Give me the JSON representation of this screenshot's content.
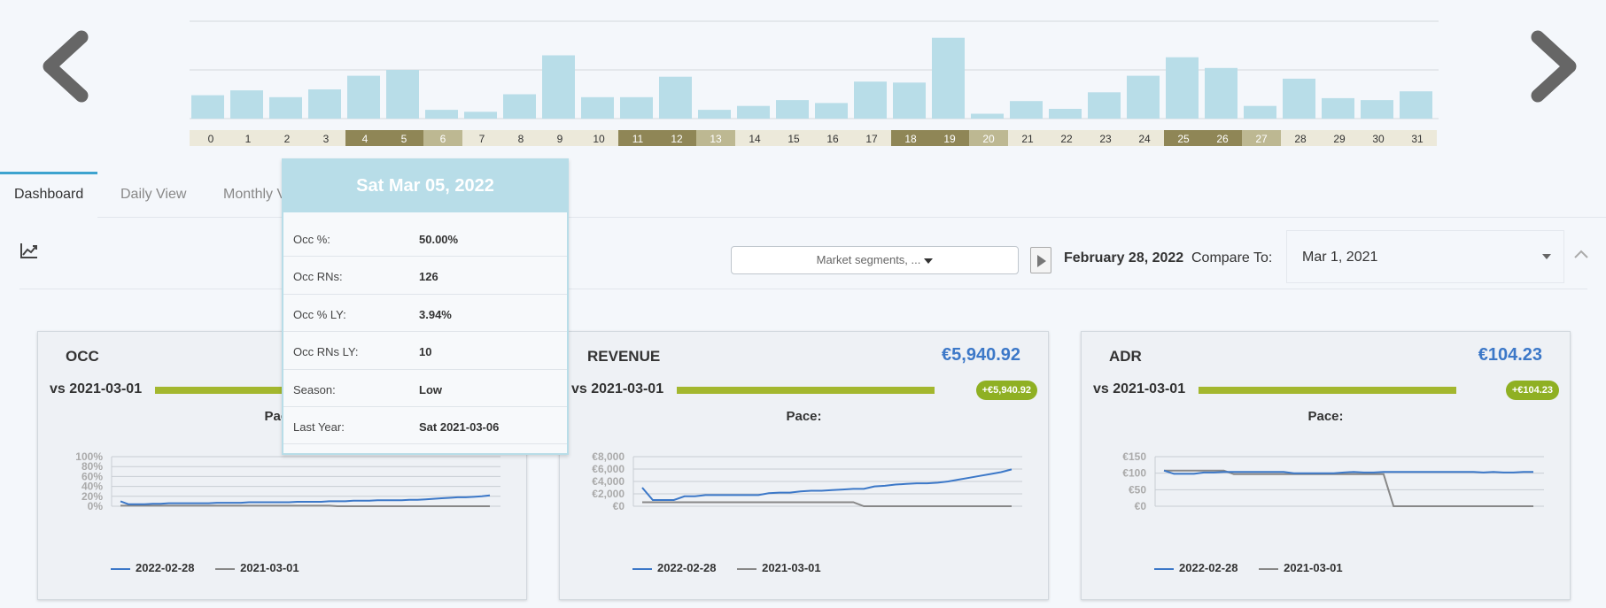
{
  "tabs": [
    {
      "label": "Dashboard"
    },
    {
      "label": "Daily View"
    },
    {
      "label": "Monthly V"
    }
  ],
  "filters": {
    "segment_label": "Market segments, ...",
    "current_date": "February 28, 2022",
    "compare_label": "Compare To:",
    "compare_value": "Mar 1, 2021"
  },
  "top_chart": {
    "type": "bar",
    "days": [
      "0",
      "1",
      "2",
      "3",
      "4",
      "5",
      "6",
      "7",
      "8",
      "9",
      "10",
      "11",
      "12",
      "13",
      "14",
      "15",
      "16",
      "17",
      "18",
      "19",
      "20",
      "21",
      "22",
      "23",
      "24",
      "25",
      "26",
      "27",
      "28",
      "29",
      "30",
      "31"
    ],
    "values": [
      24,
      29,
      22,
      30,
      44,
      50,
      9,
      7,
      25,
      65,
      22,
      22,
      43,
      9,
      13,
      19,
      16,
      38,
      37,
      83,
      5,
      18,
      10,
      27,
      44,
      63,
      52,
      13,
      41,
      21,
      19,
      28
    ],
    "day_styles": [
      "light",
      "light",
      "light",
      "light",
      "dark",
      "dark",
      "mid",
      "light",
      "light",
      "light",
      "light",
      "dark",
      "dark",
      "mid",
      "light",
      "light",
      "light",
      "light",
      "dark",
      "dark",
      "mid",
      "light",
      "light",
      "light",
      "light",
      "dark",
      "dark",
      "mid",
      "light",
      "light",
      "light",
      "light"
    ],
    "ylim": [
      0,
      100
    ],
    "colors": {
      "bar": "#b8dde8",
      "light": "#ece9da",
      "dark": "#8f8656",
      "mid": "#bdb892"
    }
  },
  "tooltip": {
    "title": "Sat Mar 05, 2022",
    "rows": [
      {
        "label": "Occ %:",
        "value": "50.00%"
      },
      {
        "label": "Occ RNs:",
        "value": "126"
      },
      {
        "label": "Occ % LY:",
        "value": "3.94%"
      },
      {
        "label": "Occ RNs LY:",
        "value": "10"
      },
      {
        "label": "Season:",
        "value": "Low"
      },
      {
        "label": "Last Year:",
        "value": "Sat 2021-03-06"
      }
    ]
  },
  "cards": [
    {
      "id": "occ",
      "title": "OCC",
      "value": "",
      "vs": "vs 2021-03-01",
      "badge": "",
      "pace": "Pace:",
      "legend": [
        "2022-02-28",
        "2021-03-01"
      ],
      "chart_data": {
        "type": "line",
        "ylim": [
          0,
          100
        ],
        "yticks": [
          0,
          20,
          40,
          60,
          80,
          100
        ],
        "ytick_labels": [
          "0%",
          "20%",
          "40%",
          "60%",
          "80%",
          "100%"
        ],
        "series": [
          {
            "name": "2022-02-28",
            "values": [
              10,
              4,
              4,
              4,
              5,
              5,
              6,
              6,
              6,
              6,
              6,
              6,
              7,
              7,
              7,
              7,
              8,
              8,
              8,
              8,
              8,
              8,
              9,
              9,
              9,
              9,
              10,
              10,
              10,
              11,
              11,
              11,
              12,
              12,
              12,
              12,
              13,
              13,
              14,
              15,
              16,
              17,
              18,
              18,
              19,
              20,
              22
            ]
          },
          {
            "name": "2021-03-01",
            "values": [
              1,
              1,
              1,
              1,
              1,
              1,
              1,
              1,
              1,
              1,
              1,
              1,
              1,
              1,
              1,
              1,
              1,
              1,
              1,
              1,
              1,
              1,
              1,
              1,
              1,
              1,
              1,
              0,
              0,
              0,
              0,
              0,
              0,
              0,
              0,
              0,
              0,
              0,
              0,
              0,
              0,
              0,
              0,
              0,
              0,
              0,
              0
            ]
          }
        ]
      }
    },
    {
      "id": "revenue",
      "title": "REVENUE",
      "value": "€5,940.92",
      "vs": "vs 2021-03-01",
      "badge": "+€5,940.92",
      "pace": "Pace:",
      "legend": [
        "2022-02-28",
        "2021-03-01"
      ],
      "chart_data": {
        "type": "line",
        "ylim": [
          0,
          8000
        ],
        "yticks": [
          0,
          2000,
          4000,
          6000,
          8000
        ],
        "ytick_labels": [
          "€0",
          "€2,000",
          "€4,000",
          "€6,000",
          "€8,000"
        ],
        "series": [
          {
            "name": "2022-02-28",
            "values": [
              3000,
              1000,
              1000,
              1000,
              1600,
              1600,
              1800,
              1800,
              1800,
              1800,
              1800,
              1800,
              2100,
              2200,
              2200,
              2400,
              2500,
              2500,
              2600,
              2700,
              2800,
              2800,
              3200,
              3300,
              3500,
              3600,
              3700,
              3700,
              3800,
              4000,
              4300,
              4600,
              4900,
              5200,
              5500,
              5940
            ]
          },
          {
            "name": "2021-03-01",
            "values": [
              650,
              650,
              650,
              650,
              650,
              650,
              650,
              650,
              650,
              650,
              650,
              650,
              650,
              650,
              650,
              650,
              650,
              650,
              650,
              650,
              650,
              0,
              0,
              0,
              0,
              0,
              0,
              0,
              0,
              0,
              0,
              0,
              0,
              0,
              0,
              0
            ]
          }
        ]
      }
    },
    {
      "id": "adr",
      "title": "ADR",
      "value": "€104.23",
      "vs": "vs 2021-03-01",
      "badge": "+€104.23",
      "pace": "Pace:",
      "legend": [
        "2022-02-28",
        "2021-03-01"
      ],
      "chart_data": {
        "type": "line",
        "ylim": [
          0,
          150
        ],
        "yticks": [
          0,
          50,
          100,
          150
        ],
        "ytick_labels": [
          "€0",
          "€50",
          "€100",
          "€150"
        ],
        "series": [
          {
            "name": "2022-02-28",
            "values": [
              108,
              98,
              98,
              98,
              102,
              102,
              104,
              104,
              104,
              104,
              104,
              104,
              104,
              100,
              100,
              100,
              100,
              100,
              102,
              104,
              102,
              102,
              104,
              104,
              104,
              104,
              104,
              104,
              104,
              104,
              104,
              104,
              102,
              104,
              102,
              102,
              104,
              104
            ]
          },
          {
            "name": "2021-03-01",
            "values": [
              108,
              108,
              108,
              108,
              108,
              108,
              108,
              97,
              97,
              97,
              97,
              97,
              97,
              97,
              97,
              97,
              97,
              97,
              97,
              97,
              97,
              97,
              97,
              0,
              0,
              0,
              0,
              0,
              0,
              0,
              0,
              0,
              0,
              0,
              0,
              0,
              0,
              0
            ]
          }
        ]
      }
    }
  ],
  "colors": {
    "series_current": "#3c78c8",
    "series_ly": "#888888",
    "accent_tab": "#3da3cf",
    "badge_green": "#8fb023"
  }
}
